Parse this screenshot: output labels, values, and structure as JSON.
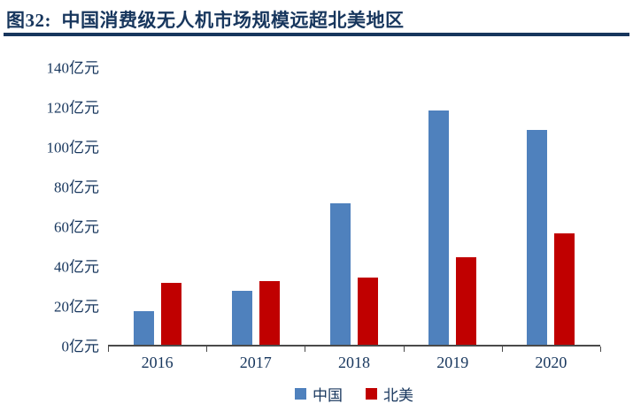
{
  "header": {
    "title": "图32:  中国消费级无人机市场规模远超北美地区",
    "accent_color": "#17365d"
  },
  "chart_data": {
    "type": "bar",
    "title": "中国消费级无人机市场规模远超北美地区",
    "categories": [
      "2016",
      "2017",
      "2018",
      "2019",
      "2020"
    ],
    "series": [
      {
        "name": "中国",
        "color": "#4f81bd",
        "values": [
          17,
          27,
          71,
          118,
          108
        ]
      },
      {
        "name": "北美",
        "color": "#c00000",
        "values": [
          31,
          32,
          34,
          44,
          56
        ]
      }
    ],
    "xlabel": "",
    "ylabel": "",
    "ylim": [
      0,
      140
    ],
    "ytick_step": 20,
    "ytick_suffix": "亿元",
    "grid": false,
    "legend_position": "bottom"
  }
}
